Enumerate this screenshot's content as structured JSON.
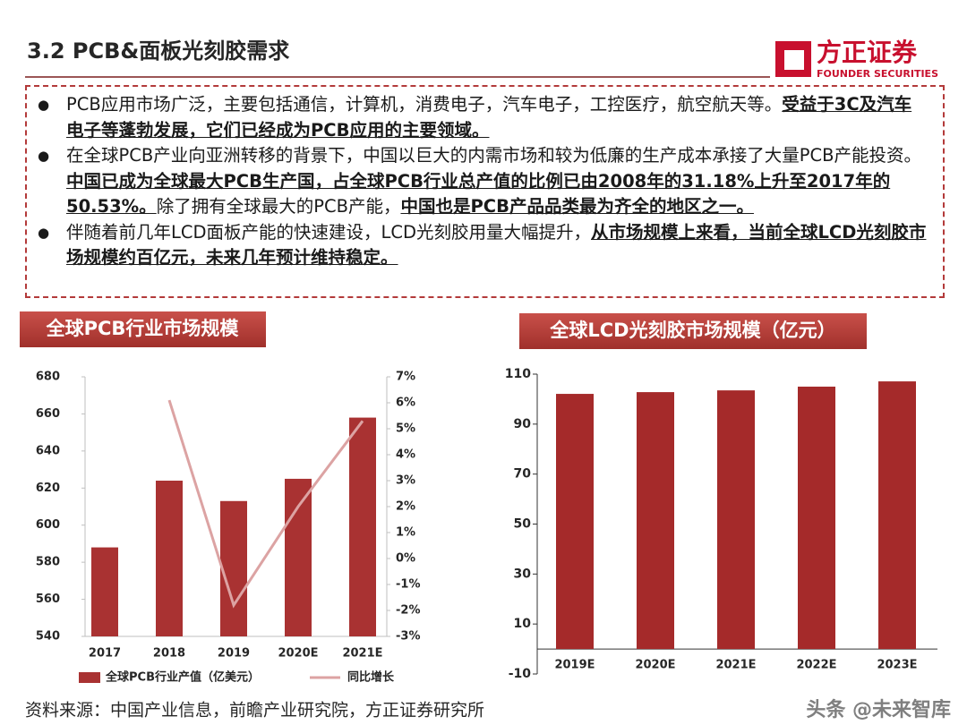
{
  "header": {
    "title": "3.2 PCB&面板光刻胶需求",
    "logo_name": "方正证券",
    "logo_subtitle": "FOUNDER SECURITIES"
  },
  "bullets": [
    [
      {
        "text": "PCB应用市场广泛，主要包括通信，计算机，消费电子，汽车电子，工控医疗，航空航天等。"
      },
      {
        "text": "受益于3C及汽车电子等蓬勃发展，它们已经成为PCB应用的主要领域。",
        "emphasis": true
      }
    ],
    [
      {
        "text": "在全球PCB产业向亚洲转移的背景下，中国以巨大的内需市场和较为低廉的生产成本承接了大量PCB产能投资。"
      },
      {
        "text": "中国已成为全球最大PCB生产国，占全球PCB行业总产值的比例已由2008年的31.18%上升至2017年的50.53%。",
        "emphasis": true
      },
      {
        "text": "除了拥有全球最大的PCB产能，"
      },
      {
        "text": "中国也是PCB产品品类最为齐全的地区之一。",
        "emphasis": true
      }
    ],
    [
      {
        "text": "伴随着前几年LCD面板产能的快速建设，LCD光刻胶用量大幅提升，"
      },
      {
        "text": "从市场规模上来看，当前全球LCD光刻胶市场规模约百亿元，未来几年预计维持稳定。",
        "emphasis": true
      }
    ]
  ],
  "chart_data": [
    {
      "type": "bar_line",
      "title": "全球PCB行业市场规模",
      "categories": [
        "2017",
        "2018",
        "2019",
        "2020E",
        "2021E"
      ],
      "series": [
        {
          "name": "全球PCB行业产值（亿美元）",
          "color": "#a93232",
          "values": [
            588,
            624,
            613,
            625,
            658
          ]
        },
        {
          "name": "同比增长",
          "color": "#dca3a3",
          "values": [
            null,
            6.1,
            -1.8,
            2.0,
            5.3
          ],
          "axis": "y2"
        }
      ],
      "ylim": [
        540,
        680
      ],
      "yticks": [
        540,
        560,
        580,
        600,
        620,
        640,
        660,
        680
      ],
      "y2lim": [
        -3,
        7
      ],
      "y2ticks": [
        {
          "value": -3,
          "label": "-3%"
        },
        {
          "value": -2,
          "label": "-2%"
        },
        {
          "value": -1,
          "label": "-1%"
        },
        {
          "value": 0,
          "label": "0%"
        },
        {
          "value": 1,
          "label": "1%"
        },
        {
          "value": 2,
          "label": "2%"
        },
        {
          "value": 3,
          "label": "3%"
        },
        {
          "value": 4,
          "label": "4%"
        },
        {
          "value": 5,
          "label": "5%"
        },
        {
          "value": 6,
          "label": "6%"
        },
        {
          "value": 7,
          "label": "7%"
        }
      ],
      "legend": "bottom"
    },
    {
      "type": "bar",
      "title": "全球LCD光刻胶市场规模（亿元）",
      "categories": [
        "2019E",
        "2020E",
        "2021E",
        "2022E",
        "2023E"
      ],
      "values": [
        102.1,
        102.8,
        103.5,
        105,
        107.1
      ],
      "color": "#a52a2a",
      "ylim": [
        -10,
        110
      ],
      "yticks": [
        -10,
        10,
        30,
        50,
        70,
        90,
        110
      ]
    }
  ],
  "footer": {
    "source": "资料来源：中国产业信息，前瞻产业研究院，方正证券研究所",
    "watermark": "头条 @未来智库"
  }
}
